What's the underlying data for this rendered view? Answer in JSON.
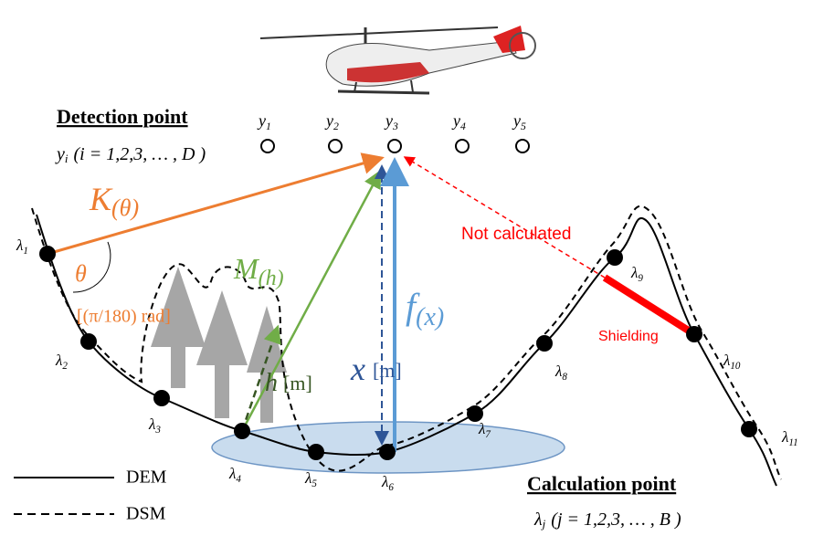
{
  "detection": {
    "title": "Detection point",
    "formula": {
      "var": "y",
      "sub": "i",
      "rest": "(i = 1,2,3, … , D )"
    },
    "points": [
      {
        "var": "y",
        "sub": "1"
      },
      {
        "var": "y",
        "sub": "2"
      },
      {
        "var": "y",
        "sub": "3"
      },
      {
        "var": "y",
        "sub": "4"
      },
      {
        "var": "y",
        "sub": "5"
      }
    ]
  },
  "calculation": {
    "title": "Calculation point",
    "formula": {
      "var": "λ",
      "sub": "j",
      "rest": "(j = 1,2,3, … , B )"
    },
    "points": [
      {
        "var": "λ",
        "sub": "1"
      },
      {
        "var": "λ",
        "sub": "2"
      },
      {
        "var": "λ",
        "sub": "3"
      },
      {
        "var": "λ",
        "sub": "4"
      },
      {
        "var": "λ",
        "sub": "5"
      },
      {
        "var": "λ",
        "sub": "6"
      },
      {
        "var": "λ",
        "sub": "7"
      },
      {
        "var": "λ",
        "sub": "8"
      },
      {
        "var": "λ",
        "sub": "9"
      },
      {
        "var": "λ",
        "sub": "10"
      },
      {
        "var": "λ",
        "sub": "11"
      }
    ]
  },
  "labels": {
    "k": {
      "var": "K",
      "sub": "(θ)"
    },
    "m": {
      "var": "M",
      "sub": "(h)"
    },
    "f": {
      "var": "f",
      "sub": "(x)"
    },
    "theta": "θ",
    "theta_unit": "[(π/180) rad]",
    "h": {
      "var": "h",
      "unit": "[m]"
    },
    "x": {
      "var": "x",
      "unit": "[m]"
    },
    "not_calculated": "Not calculated",
    "shielding": "Shielding"
  },
  "legend": {
    "dem": "DEM",
    "dsm": "DSM"
  }
}
